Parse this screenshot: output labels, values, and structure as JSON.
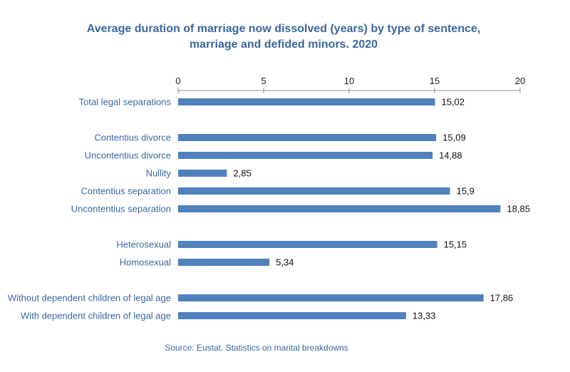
{
  "chart_data": {
    "type": "bar",
    "orientation": "horizontal",
    "title_lines": [
      "Average duration of marriage now dissolved (years) by type of sentence,",
      "marriage and defided minors. 2020"
    ],
    "categories": [
      "Total legal separations",
      "",
      "Contentius divorce",
      "Uncontentius divorce",
      "Nullity",
      "Contentius separation",
      "Uncontentius separation",
      "",
      "Heterosexual",
      "Homosexual",
      "",
      "Without dependent children of legal age",
      "With dependent children of legal age"
    ],
    "values": [
      15.02,
      null,
      15.09,
      14.88,
      2.85,
      15.9,
      18.85,
      null,
      15.15,
      5.34,
      null,
      17.86,
      13.33
    ],
    "value_labels": [
      "15,02",
      "",
      "15,09",
      "14,88",
      "2,85",
      "15,9",
      "18,85",
      "",
      "15,15",
      "5,34",
      "",
      "17,86",
      "13,33"
    ],
    "xlim": [
      0,
      20
    ],
    "xticks": [
      0,
      5,
      10,
      15,
      20
    ],
    "xtick_labels": [
      "0",
      "5",
      "10",
      "15",
      "20"
    ],
    "axis_position": "top",
    "grid": false,
    "legend": "none",
    "bar_color": "#4f81bd",
    "source": "Source: Eustat. Statistics on marital breakdowns"
  }
}
